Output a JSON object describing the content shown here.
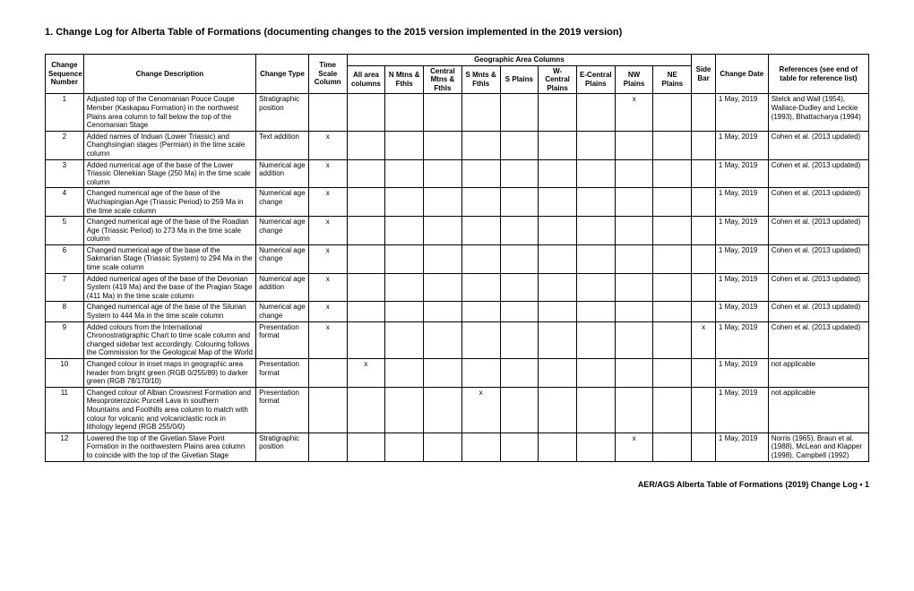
{
  "title": "1.  Change Log for Alberta Table of Formations (documenting changes to the 2015 version implemented in the 2019 version)",
  "headers": {
    "seq": "Change Sequence Number",
    "desc": "Change Description",
    "type": "Change Type",
    "geo": "Geographic Area Columns",
    "tsc": "Time Scale Column",
    "a1": "All area columns",
    "a2": "N Mtns & Fthls",
    "a3": "Central Mtns & Fthls",
    "a4": "S Mnts & Fthls",
    "a5": "S Plains",
    "a6": "W-Central Plains",
    "a7": "E-Central Plains",
    "a8": "NW Plains",
    "a9": "NE Plains",
    "side": "Side Bar",
    "date": "Change Date",
    "ref": "References (see end of table for reference list)"
  },
  "rows": [
    {
      "n": "1",
      "desc": "Adjusted top of the Cenomanian Pouce Coupe Member (Kaskapau Formation) in the northwest Plains area column to fall below the top of the Cenomanian Stage",
      "type": "Stratigraphic position",
      "tsc": "",
      "a1": "",
      "a2": "",
      "a3": "",
      "a4": "",
      "a5": "",
      "a6": "",
      "a7": "",
      "a8": "x",
      "a9": "",
      "side": "",
      "date": "1 May, 2019",
      "ref": "Stelck and Wall (1954), Wallace-Dudley and Leckie (1993), Bhattacharya (1994)"
    },
    {
      "n": "2",
      "desc": "Added names of Induan (Lower Triassic) and Changhsingian stages (Permian) in the time scale column",
      "type": "Text addition",
      "tsc": "x",
      "a1": "",
      "a2": "",
      "a3": "",
      "a4": "",
      "a5": "",
      "a6": "",
      "a7": "",
      "a8": "",
      "a9": "",
      "side": "",
      "date": "1 May, 2019",
      "ref": "Cohen et al. (2013 updated)"
    },
    {
      "n": "3",
      "desc": "Added numerical age of the base of the Lower Triassic Olenekian Stage (250 Ma) in the time scale column",
      "type": "Numerical age addition",
      "tsc": "x",
      "a1": "",
      "a2": "",
      "a3": "",
      "a4": "",
      "a5": "",
      "a6": "",
      "a7": "",
      "a8": "",
      "a9": "",
      "side": "",
      "date": "1 May, 2019",
      "ref": "Cohen et al. (2013 updated)"
    },
    {
      "n": "4",
      "desc": "Changed numerical age of the base of the Wuchiapingian Age (Triassic Period) to 259 Ma in the time scale column",
      "type": "Numerical age change",
      "tsc": "x",
      "a1": "",
      "a2": "",
      "a3": "",
      "a4": "",
      "a5": "",
      "a6": "",
      "a7": "",
      "a8": "",
      "a9": "",
      "side": "",
      "date": "1 May, 2019",
      "ref": "Cohen et al. (2013 updated)"
    },
    {
      "n": "5",
      "desc": "Changed numerical age of the base of the Roadian Age (Triassic Period) to 273 Ma in the time scale column",
      "type": "Numerical age change",
      "tsc": "x",
      "a1": "",
      "a2": "",
      "a3": "",
      "a4": "",
      "a5": "",
      "a6": "",
      "a7": "",
      "a8": "",
      "a9": "",
      "side": "",
      "date": "1 May, 2019",
      "ref": "Cohen et al. (2013 updated)"
    },
    {
      "n": "6",
      "desc": "Changed numerical age of the base of the Sakmarian Stage (Triassic System) to 294 Ma in the time scale column",
      "type": "Numerical age change",
      "tsc": "x",
      "a1": "",
      "a2": "",
      "a3": "",
      "a4": "",
      "a5": "",
      "a6": "",
      "a7": "",
      "a8": "",
      "a9": "",
      "side": "",
      "date": "1 May, 2019",
      "ref": "Cohen et al. (2013 updated)"
    },
    {
      "n": "7",
      "desc": "Added numerical ages of the base of the Devonian System (419 Ma) and the base of the Pragian Stage (411 Ma) in the time scale column",
      "type": "Numerical age addition",
      "tsc": "x",
      "a1": "",
      "a2": "",
      "a3": "",
      "a4": "",
      "a5": "",
      "a6": "",
      "a7": "",
      "a8": "",
      "a9": "",
      "side": "",
      "date": "1 May, 2019",
      "ref": "Cohen et al. (2013 updated)"
    },
    {
      "n": "8",
      "desc": "Changed numerical age of the base of the Silurian System to 444 Ma in the time scale column",
      "type": "Numerical age change",
      "tsc": "x",
      "a1": "",
      "a2": "",
      "a3": "",
      "a4": "",
      "a5": "",
      "a6": "",
      "a7": "",
      "a8": "",
      "a9": "",
      "side": "",
      "date": "1 May, 2019",
      "ref": "Cohen et al. (2013 updated)"
    },
    {
      "n": "9",
      "desc": "Added colours from the International Chronostratigraphic Chart to time scale column and changed sidebar text accordingly. Colouring follows the Commission for the Geological Map of the World",
      "type": "Presentation format",
      "tsc": "x",
      "a1": "",
      "a2": "",
      "a3": "",
      "a4": "",
      "a5": "",
      "a6": "",
      "a7": "",
      "a8": "",
      "a9": "",
      "side": "x",
      "date": "1 May, 2019",
      "ref": "Cohen et al. (2013 updated)"
    },
    {
      "n": "10",
      "desc": "Changed colour in inset maps in geographic area header from bright green (RGB 0/255/89) to darker green (RGB 78/170/10)",
      "type": "Presentation format",
      "tsc": "",
      "a1": "x",
      "a2": "",
      "a3": "",
      "a4": "",
      "a5": "",
      "a6": "",
      "a7": "",
      "a8": "",
      "a9": "",
      "side": "",
      "date": "1 May, 2019",
      "ref": "not applicable"
    },
    {
      "n": "11",
      "desc": "Changed colour of Albian Crowsnest Formation and Mesoproterozoic Purcell Lava in southern Mountains and Foothills area column to match with colour for volcanic and volcaniclastic rock in lithology legend (RGB  255/0/0)",
      "type": "Presentation format",
      "tsc": "",
      "a1": "",
      "a2": "",
      "a3": "",
      "a4": "x",
      "a5": "",
      "a6": "",
      "a7": "",
      "a8": "",
      "a9": "",
      "side": "",
      "date": "1 May, 2019",
      "ref": "not applicable"
    },
    {
      "n": "12",
      "desc": "Lowered the top of the Givetian Slave Point Formation in the northwestern Plains area column to coincide with the top of the Givetian Stage",
      "type": "Stratigraphic position",
      "tsc": "",
      "a1": "",
      "a2": "",
      "a3": "",
      "a4": "",
      "a5": "",
      "a6": "",
      "a7": "",
      "a8": "x",
      "a9": "",
      "side": "",
      "date": "1 May, 2019",
      "ref": "Norris (1965), Braun et al. (1988), McLean and Klapper (1998), Campbell (1992)"
    }
  ],
  "footer": "AER/AGS Alberta Table of Formations (2019) Change Log   •   1"
}
